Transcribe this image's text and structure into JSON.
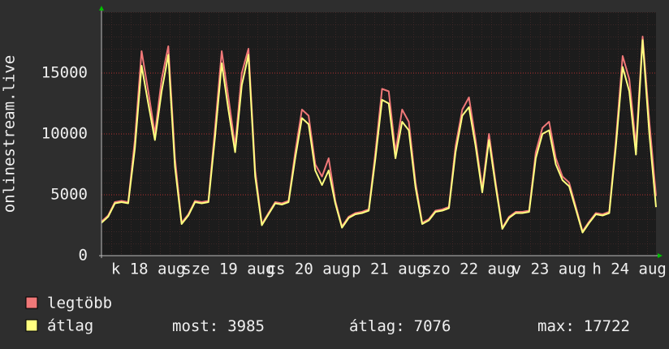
{
  "chart_data": {
    "type": "line",
    "ylabel": "onlinestream.live",
    "ylim": [
      0,
      20000
    ],
    "yticks": [
      0,
      5000,
      10000,
      15000
    ],
    "grid": true,
    "categories": [
      null,
      null,
      null,
      null,
      null,
      null,
      null,
      "k 18 aug",
      null,
      null,
      null,
      null,
      null,
      null,
      null,
      null,
      null,
      null,
      null,
      "sze 19 aug",
      null,
      null,
      null,
      null,
      null,
      null,
      null,
      null,
      null,
      null,
      null,
      "cs 20 aug",
      null,
      null,
      null,
      null,
      null,
      null,
      null,
      null,
      null,
      null,
      null,
      "p 21 aug",
      null,
      null,
      null,
      null,
      null,
      null,
      null,
      null,
      null,
      null,
      null,
      "szo 22 aug",
      null,
      null,
      null,
      null,
      null,
      null,
      null,
      null,
      null,
      null,
      null,
      "v 23 aug",
      null,
      null,
      null,
      null,
      null,
      null,
      null,
      null,
      null,
      null,
      null,
      "h 24 aug",
      null,
      null,
      null,
      null
    ],
    "series": [
      {
        "name": "legtöbb",
        "color": "#f07878",
        "values": [
          2800,
          3300,
          4400,
          4500,
          4400,
          9500,
          16800,
          13500,
          10000,
          14500,
          17200,
          8000,
          2700,
          3400,
          4500,
          4400,
          4500,
          10500,
          16800,
          13000,
          9000,
          15000,
          17000,
          7000,
          2600,
          3500,
          4400,
          4300,
          4500,
          8500,
          12000,
          11500,
          7500,
          6500,
          8000,
          4500,
          2400,
          3200,
          3500,
          3600,
          3800,
          8500,
          13700,
          13500,
          8500,
          12000,
          11000,
          6000,
          2700,
          3000,
          3700,
          3800,
          4000,
          9000,
          12000,
          13000,
          9500,
          5500,
          10000,
          6000,
          2300,
          3200,
          3600,
          3600,
          3700,
          8500,
          10500,
          11000,
          8000,
          6500,
          6000,
          4000,
          2000,
          2800,
          3500,
          3400,
          3600,
          9500,
          16400,
          14500,
          9000,
          18000,
          11000,
          4900
        ]
      },
      {
        "name": "átlag",
        "color": "#ffff80",
        "values": [
          2700,
          3200,
          4300,
          4400,
          4300,
          8800,
          15600,
          12500,
          9500,
          13500,
          16500,
          7300,
          2600,
          3300,
          4400,
          4300,
          4400,
          9800,
          15800,
          12000,
          8500,
          14000,
          16500,
          6500,
          2500,
          3400,
          4300,
          4200,
          4400,
          8000,
          11300,
          10800,
          7000,
          5800,
          7000,
          4300,
          2300,
          3100,
          3400,
          3500,
          3700,
          8000,
          12800,
          12500,
          8000,
          11000,
          10300,
          5600,
          2600,
          2900,
          3600,
          3700,
          3900,
          8500,
          11500,
          12200,
          9000,
          5200,
          9500,
          5700,
          2200,
          3100,
          3500,
          3500,
          3600,
          8000,
          10000,
          10300,
          7500,
          6200,
          5700,
          3800,
          1900,
          2700,
          3400,
          3300,
          3500,
          9000,
          15500,
          13500,
          8300,
          17722,
          10000,
          3985
        ]
      }
    ],
    "stats": [
      {
        "label": "most:",
        "value": 3985
      },
      {
        "label": "átlag:",
        "value": 7076
      },
      {
        "label": "max:",
        "value": 17722
      }
    ]
  }
}
